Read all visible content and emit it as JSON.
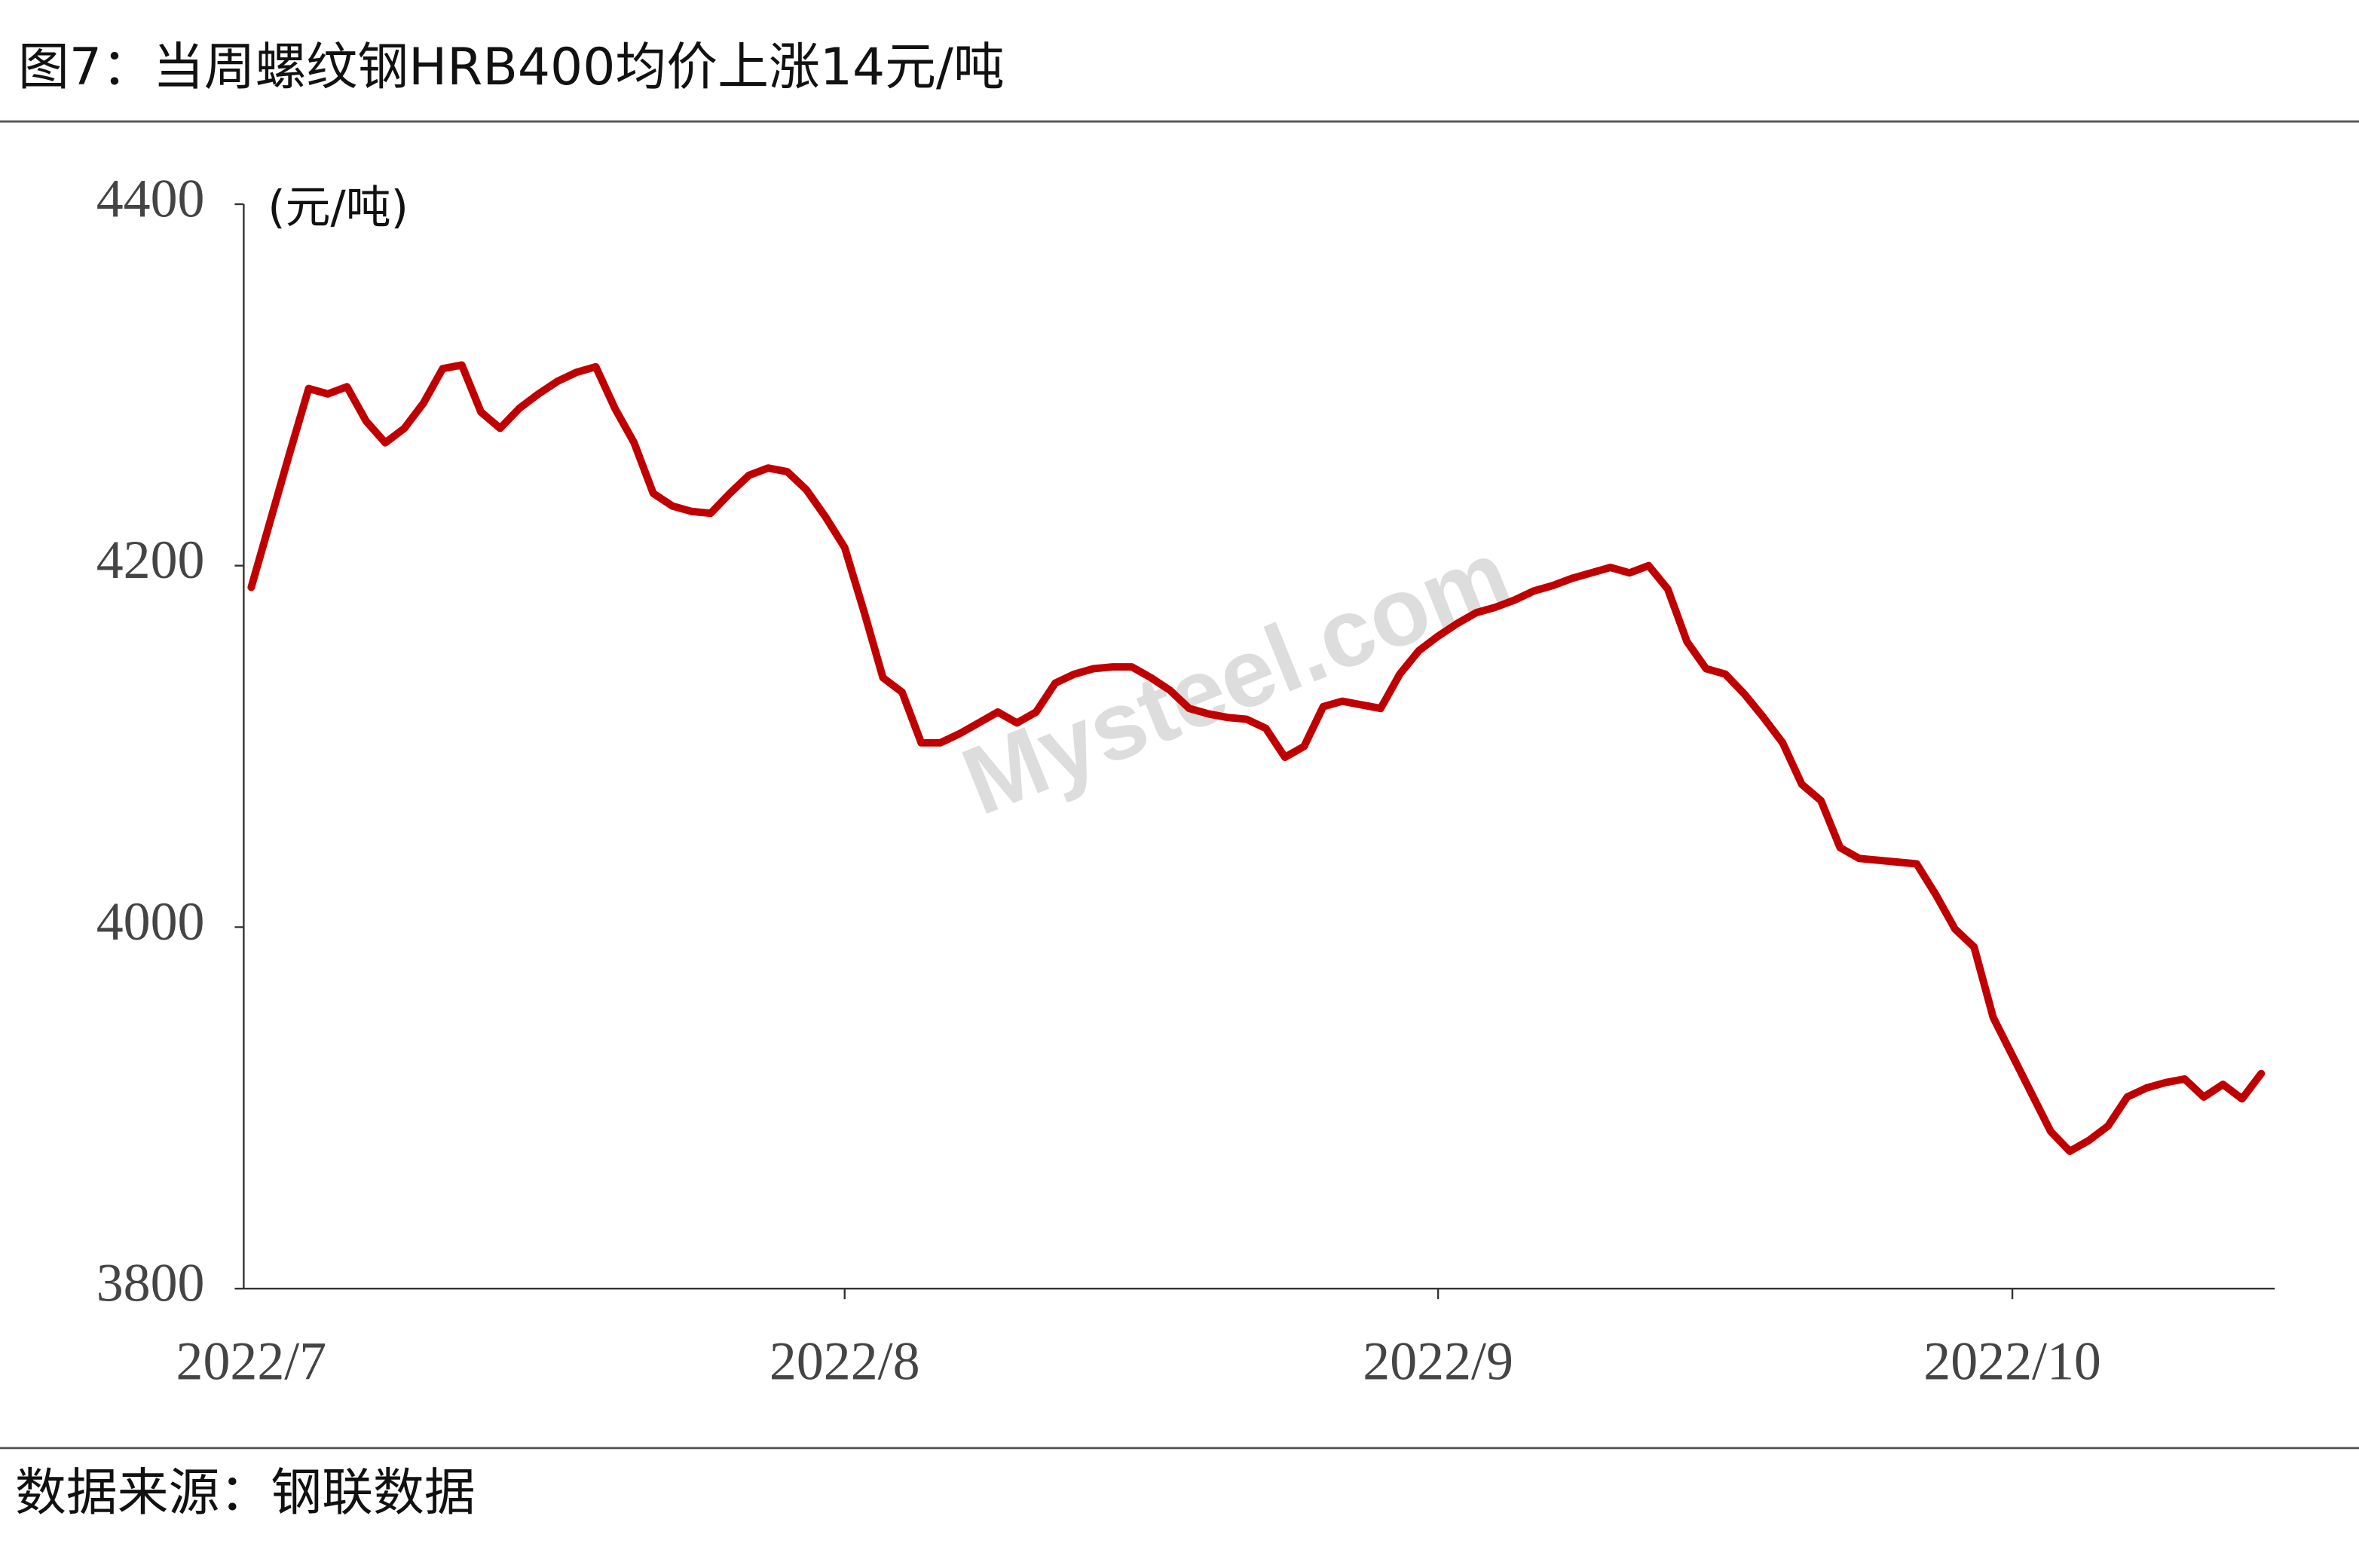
{
  "chart_data": {
    "type": "line",
    "title": "图7：当周螺纹钢HRB400均价上涨14元/吨",
    "y_label": "(元/吨)",
    "source": "数据来源：钢联数据",
    "watermark": "Mysteel.com",
    "categories": [
      "2022/7",
      null,
      null,
      null,
      null,
      null,
      null,
      null,
      null,
      null,
      null,
      null,
      null,
      null,
      null,
      null,
      null,
      null,
      null,
      null,
      null,
      null,
      null,
      null,
      null,
      null,
      null,
      null,
      null,
      null,
      null,
      "2022/8",
      null,
      null,
      null,
      null,
      null,
      null,
      null,
      null,
      null,
      null,
      null,
      null,
      null,
      null,
      null,
      null,
      null,
      null,
      null,
      null,
      null,
      null,
      null,
      null,
      null,
      null,
      null,
      null,
      null,
      null,
      "2022/9",
      null,
      null,
      null,
      null,
      null,
      null,
      null,
      null,
      null,
      null,
      null,
      null,
      null,
      null,
      null,
      null,
      null,
      null,
      null,
      null,
      null,
      null,
      null,
      null,
      null,
      null,
      null,
      null,
      null,
      "2022/10",
      null,
      null,
      null,
      null,
      null,
      null,
      null,
      null,
      null,
      null,
      null,
      null,
      null
    ],
    "series": [
      {
        "name": "螺纹钢HRB400均价",
        "color": "#c00000",
        "values": [
          4188,
          4225,
          4262,
          4298,
          4295,
          4299,
          4280,
          4268,
          4276,
          4290,
          4309,
          4311,
          4285,
          4276,
          4287,
          4295,
          4302,
          4307,
          4310,
          4287,
          4268,
          4240,
          4233,
          4230,
          4229,
          4240,
          4250,
          4254,
          4252,
          4242,
          4227,
          4210,
          4175,
          4138,
          4130,
          4102,
          4102,
          4107,
          4113,
          4119,
          4113,
          4119,
          4135,
          4140,
          4143,
          4144,
          4144,
          4138,
          4131,
          4121,
          4118,
          4116,
          4115,
          4110,
          4094,
          4100,
          4122,
          4125,
          4123,
          4121,
          4140,
          4153,
          4161,
          4168,
          4174,
          4177,
          4181,
          4186,
          4189,
          4193,
          4196,
          4199,
          4196,
          4200,
          4187,
          4158,
          4143,
          4140,
          4129,
          4116,
          4102,
          4079,
          4070,
          4044,
          4038,
          4037,
          4036,
          4035,
          4018,
          3999,
          3989,
          3950,
          3929,
          3908,
          3887,
          3876,
          3882,
          3890,
          3906,
          3911,
          3914,
          3916,
          3906,
          3913,
          3905,
          3919
        ]
      }
    ],
    "ylim": [
      3800,
      4400
    ],
    "yticks": [
      3800,
      4000,
      4200,
      4400
    ],
    "grid": false
  }
}
